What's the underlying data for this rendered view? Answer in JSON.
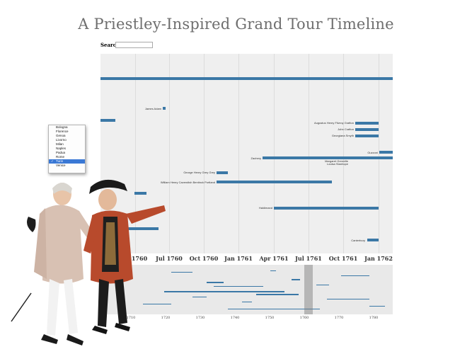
{
  "title": "A Priestley-Inspired Grand Tour Timeline",
  "search": {
    "label": "Search",
    "placeholder": ""
  },
  "axis_ticks": [
    "1760",
    "Jul 1760",
    "Oct 1760",
    "Jan 1761",
    "Apr 1761",
    "Jul 1761",
    "Oct 1761",
    "Jan 1762"
  ],
  "overview_ticks": [
    "1710",
    "1720",
    "1730",
    "1740",
    "1750",
    "1760",
    "1770",
    "1780"
  ],
  "people": [
    "James Adam",
    "Augustus Henry Fitzroy Grafton",
    "John Crafton",
    "Georgiana Smyth",
    "Zachery",
    "Margaret Grenville",
    "Louisa Stanhope",
    "George Henry Grey Grey",
    "William Henry Cavendish Bentinck Portland",
    "Haldimand",
    "Canterbury",
    "Guzzoni"
  ],
  "city_menu": {
    "items": [
      "Bologna",
      "Florence",
      "Genoa",
      "Livorno",
      "Milan",
      "Naples",
      "Padua",
      "Rome",
      "Turin",
      "Venice"
    ],
    "selected": "Turin"
  },
  "colors": {
    "bar": "#3b78a6",
    "title": "#6e6e6e",
    "selection": "#3a78d5"
  }
}
